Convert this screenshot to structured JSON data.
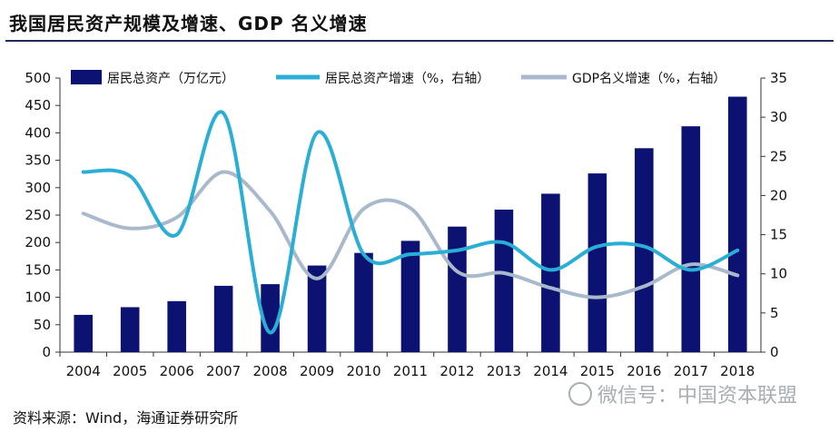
{
  "header": {
    "title": "我国居民资产规模及增速、GDP 名义增速"
  },
  "footer": {
    "source": "资料来源：Wind，海通证券研究所",
    "watermark": "微信号：中国资本联盟"
  },
  "colors": {
    "bar": "#0b1272",
    "asset_growth": "#2aaed6",
    "gdp_growth": "#a9b9cc",
    "title_rule": "#1f2a5a"
  },
  "chart_data": {
    "type": "bar",
    "categories": [
      "2004",
      "2005",
      "2006",
      "2007",
      "2008",
      "2009",
      "2010",
      "2011",
      "2012",
      "2013",
      "2014",
      "2015",
      "2016",
      "2017",
      "2018"
    ],
    "ylim": [
      0,
      500
    ],
    "yticks": [
      0,
      50,
      100,
      150,
      200,
      250,
      300,
      350,
      400,
      450,
      500
    ],
    "y2lim": [
      0,
      35
    ],
    "y2ticks": [
      0,
      5,
      10,
      15,
      20,
      25,
      30,
      35
    ],
    "grid": false,
    "legend_position": "top",
    "series": [
      {
        "name": "居民总资产（万亿元）",
        "type": "bar",
        "axis": "left",
        "values": [
          68,
          82,
          93,
          121,
          124,
          158,
          181,
          203,
          229,
          260,
          289,
          326,
          372,
          412,
          466
        ]
      },
      {
        "name": "居民总资产增速（%，右轴）",
        "type": "line",
        "axis": "right",
        "values": [
          23,
          22.5,
          15,
          30.5,
          2.5,
          28,
          12.5,
          12.5,
          13,
          14,
          10.5,
          13.5,
          13.5,
          10.5,
          13
        ]
      },
      {
        "name": "GDP名义增速（%，右轴）",
        "type": "line",
        "axis": "right",
        "values": [
          17.7,
          15.8,
          17.2,
          23,
          18,
          9.4,
          18.3,
          18.4,
          10.3,
          10.1,
          8.2,
          7,
          8.4,
          11.2,
          9.8
        ]
      }
    ]
  }
}
